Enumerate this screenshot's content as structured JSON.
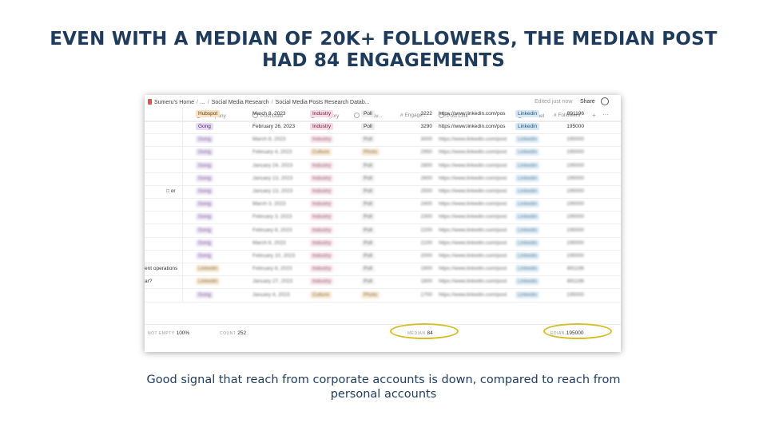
{
  "slide": {
    "title": "EVEN WITH A MEDIAN OF 20K+ FOLLOWERS, THE MEDIAN POST HAD 84 ENGAGEMENTS",
    "caption": "Good signal that reach from corporate accounts is down, compared to reach from personal accounts"
  },
  "topbar": {
    "breadcrumbs": [
      "Sumeru's Home",
      "...",
      "Social Media Research",
      "Social Media Posts Research Datab..."
    ],
    "separator": "/",
    "edited": "Edited just now",
    "share": "Share"
  },
  "columns": [
    "Company",
    "Post Date",
    "Category",
    "Creativ...",
    "Engage...",
    "Post Link",
    "Channel",
    "Followers"
  ],
  "rows": [
    {
      "company": "Hubspot",
      "date": "March 8, 2023",
      "category": "Industry",
      "creative": "Poll",
      "engagement": "3222",
      "link": "https://www.linkedin.com/pos",
      "channel": "Linkedin",
      "followers": "891196"
    },
    {
      "company": "Gong",
      "date": "February 26, 2023",
      "category": "Industry",
      "creative": "Poll",
      "engagement": "3290",
      "link": "https://www.linkedin.com/pos",
      "channel": "Linkedin",
      "followers": "195000"
    },
    {
      "company": "Gong",
      "date": "March 8, 2023",
      "category": "Industry",
      "creative": "Poll",
      "engagement": "3000",
      "link": "https://www.linkedin.com/post",
      "channel": "Linkedin",
      "followers": "195000"
    },
    {
      "company": "Gong",
      "date": "February 4, 2023",
      "category": "Culture",
      "creative": "Photo",
      "engagement": "2950",
      "link": "https://www.linkedin.com/post",
      "channel": "Linkedin",
      "followers": "195000"
    },
    {
      "company": "Gong",
      "date": "January 24, 2023",
      "category": "Industry",
      "creative": "Poll",
      "engagement": "2800",
      "link": "https://www.linkedin.com/post",
      "channel": "Linkedin",
      "followers": "195000"
    },
    {
      "company": "Gong",
      "date": "January 13, 2023",
      "category": "Industry",
      "creative": "Poll",
      "engagement": "2600",
      "link": "https://www.linkedin.com/post",
      "channel": "Linkedin",
      "followers": "195000"
    },
    {
      "company": "Gong",
      "date": "January 13, 2023",
      "category": "Industry",
      "creative": "Poll",
      "engagement": "2500",
      "link": "https://www.linkedin.com/post",
      "channel": "Linkedin",
      "followers": "195000"
    },
    {
      "company": "Gong",
      "date": "March 3, 2023",
      "category": "Industry",
      "creative": "Poll",
      "engagement": "2400",
      "link": "https://www.linkedin.com/post",
      "channel": "Linkedin",
      "followers": "195000"
    },
    {
      "company": "Gong",
      "date": "February 3, 2023",
      "category": "Industry",
      "creative": "Poll",
      "engagement": "2300",
      "link": "https://www.linkedin.com/post",
      "channel": "Linkedin",
      "followers": "195000"
    },
    {
      "company": "Gong",
      "date": "February 8, 2023",
      "category": "Industry",
      "creative": "Poll",
      "engagement": "2200",
      "link": "https://www.linkedin.com/post",
      "channel": "Linkedin",
      "followers": "195000"
    },
    {
      "company": "Gong",
      "date": "March 6, 2023",
      "category": "Industry",
      "creative": "Poll",
      "engagement": "2100",
      "link": "https://www.linkedin.com/post",
      "channel": "Linkedin",
      "followers": "195000"
    },
    {
      "company": "Gong",
      "date": "February 10, 2023",
      "category": "Industry",
      "creative": "Poll",
      "engagement": "2000",
      "link": "https://www.linkedin.com/post",
      "channel": "Linkedin",
      "followers": "195000"
    },
    {
      "company": "Linkedin",
      "date": "February 8, 2023",
      "category": "Industry",
      "creative": "Poll",
      "engagement": "1900",
      "link": "https://www.linkedin.com/post",
      "channel": "Linkedin",
      "followers": "891196"
    },
    {
      "company": "Linkedin",
      "date": "January 27, 2023",
      "category": "Industry",
      "creative": "Poll",
      "engagement": "1800",
      "link": "https://www.linkedin.com/post",
      "channel": "Linkedin",
      "followers": "891196"
    },
    {
      "company": "Gong",
      "date": "January 4, 2023",
      "category": "Culture",
      "creative": "Photo",
      "engagement": "1700",
      "link": "https://www.linkedin.com/post",
      "channel": "Linkedin",
      "followers": "195000"
    }
  ],
  "sidebar_snippets": {
    "r6": "□ or",
    "r12": "ent operations",
    "r13": "ar?"
  },
  "footer": {
    "not_empty_label": "NOT EMPTY",
    "not_empty_value": "100%",
    "count_label": "COUNT",
    "count_value": "252",
    "median_label": "MEDIAN",
    "median_value": "84",
    "median2_label": "EDIAN",
    "median2_value": "195000"
  },
  "colors": {
    "title": "#1f3b5c",
    "highlight": "#d8bc2a"
  }
}
